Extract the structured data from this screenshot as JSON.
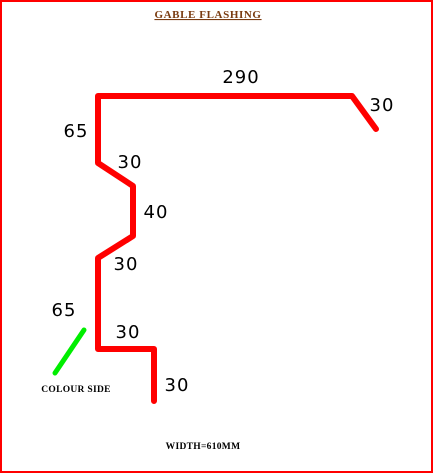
{
  "title": "GABLE FLASHING",
  "colour_side_label": "COLOUR SIDE",
  "width_label": "WIDTH=610MM",
  "dimensions": {
    "top": "290",
    "top_right_return": "30",
    "left_upper": "65",
    "bend_upper": "30",
    "middle": "40",
    "bend_lower": "30",
    "colour_side_leg": "65",
    "bottom_step": "30",
    "bottom_drop": "30"
  },
  "colors": {
    "frame": "#ff0000",
    "profile": "#ff0000",
    "colour_side_marker": "#00ee00",
    "title": "#7a3b10",
    "text": "#000000"
  }
}
